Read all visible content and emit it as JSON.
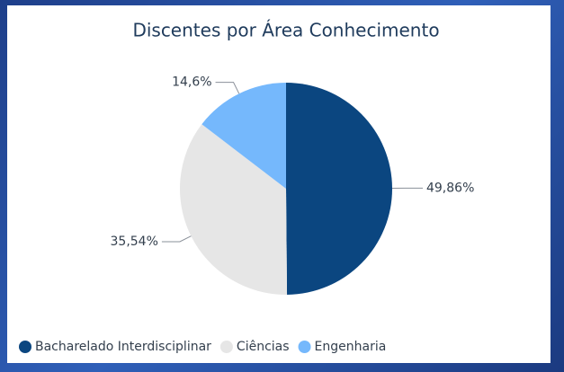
{
  "chart_data": {
    "type": "pie",
    "title": "Discentes por Área Conhecimento",
    "categories": [
      "Bacharelado Interdisciplinar",
      "Ciências",
      "Engenharia"
    ],
    "values": [
      49.86,
      35.54,
      14.6
    ],
    "value_labels": [
      "49,86%",
      "35,54%",
      "14,6%"
    ],
    "colors": [
      "#0b4680",
      "#e6e6e6",
      "#75b8fc"
    ],
    "legend": "bottom-left"
  }
}
